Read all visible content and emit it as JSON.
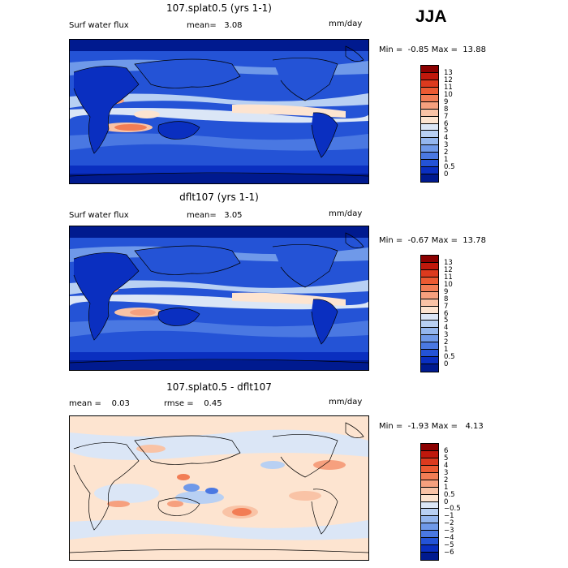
{
  "season": "JJA",
  "panels": [
    {
      "title": "107.splat0.5 (yrs 1-1)",
      "left_label": "Surf water flux",
      "mid_label": "mean=   3.08",
      "units": "mm/day",
      "minmax": "Min =  -0.85 Max =  13.88",
      "colorbar": {
        "labels": [
          "13",
          "12",
          "11",
          "10",
          "9",
          "8",
          "7",
          "6",
          "5",
          "4",
          "3",
          "2",
          "1",
          "0.5",
          "0"
        ],
        "colors": [
          "#8b0000",
          "#c0180c",
          "#dc3a1e",
          "#ec5a32",
          "#f27d55",
          "#f6a07e",
          "#f9c3a6",
          "#fde4d0",
          "#dbe6f6",
          "#b8d0f3",
          "#94b6ee",
          "#6f99e9",
          "#4a78e2",
          "#2453d6",
          "#0a2fc0",
          "#001a8f"
        ]
      }
    },
    {
      "title": "dflt107 (yrs 1-1)",
      "left_label": "Surf water flux",
      "mid_label": "mean=   3.05",
      "units": "mm/day",
      "minmax": "Min =  -0.67 Max =  13.78",
      "colorbar": {
        "labels": [
          "13",
          "12",
          "11",
          "10",
          "9",
          "8",
          "7",
          "6",
          "5",
          "4",
          "3",
          "2",
          "1",
          "0.5",
          "0"
        ],
        "colors": [
          "#8b0000",
          "#c0180c",
          "#dc3a1e",
          "#ec5a32",
          "#f27d55",
          "#f6a07e",
          "#f9c3a6",
          "#fde4d0",
          "#dbe6f6",
          "#b8d0f3",
          "#94b6ee",
          "#6f99e9",
          "#4a78e2",
          "#2453d6",
          "#0a2fc0",
          "#001a8f"
        ]
      }
    },
    {
      "title": "107.splat0.5 - dflt107",
      "left_label": "mean =    0.03",
      "mid_label": "rmse =    0.45",
      "units": "mm/day",
      "minmax": "Min =  -1.93 Max =   4.13",
      "colorbar": {
        "labels": [
          "6",
          "5",
          "4",
          "3",
          "2",
          "1",
          "0.5",
          "0",
          "−0.5",
          "−1",
          "−2",
          "−3",
          "−4",
          "−5",
          "−6"
        ],
        "colors": [
          "#8b0000",
          "#c0180c",
          "#dc3a1e",
          "#ec5a32",
          "#f27d55",
          "#f6a07e",
          "#f9c3a6",
          "#fde4d0",
          "#dbe6f6",
          "#b8d0f3",
          "#94b6ee",
          "#6f99e9",
          "#4a78e2",
          "#2453d6",
          "#0a2fc0",
          "#001a8f"
        ]
      }
    }
  ]
}
